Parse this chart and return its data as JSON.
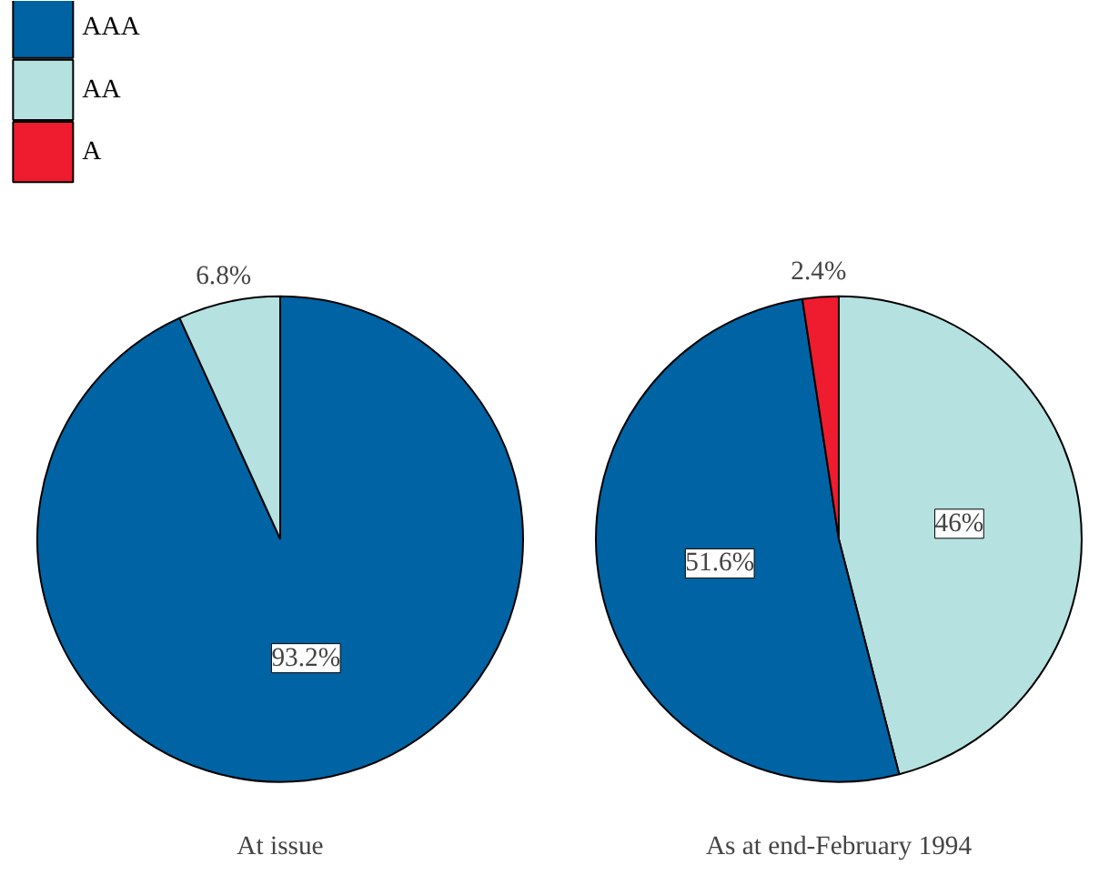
{
  "chart_data": [
    {
      "type": "pie",
      "title": "At issue",
      "categories": [
        "AAA",
        "AA",
        "A"
      ],
      "values": [
        93.2,
        6.8,
        null
      ],
      "colors": [
        "#0063a3",
        "#b5e1e0",
        "#ee1c2e"
      ],
      "value_labels": [
        "93.2%",
        "6.8%",
        null
      ],
      "legend": "top left"
    },
    {
      "type": "pie",
      "title": "As at end-February 1994",
      "categories": [
        null,
        null,
        null
      ],
      "values": [
        46,
        51.6,
        2.4
      ],
      "colors": [
        "#b5e1e0",
        "#0063a3",
        "#ee1c2e"
      ],
      "value_labels": [
        "46%",
        "51.6%",
        "2.4%"
      ]
    }
  ]
}
